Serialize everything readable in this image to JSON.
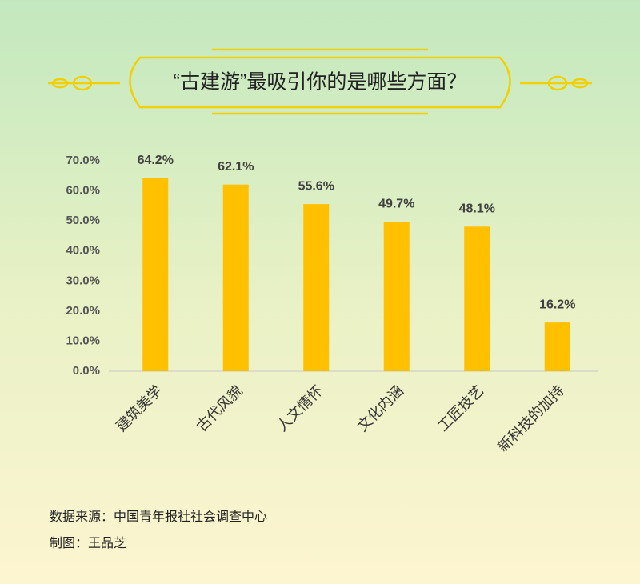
{
  "chart_data": {
    "type": "bar",
    "title": "“古建游”最吸引你的是哪些方面？",
    "categories": [
      "建筑美学",
      "古代风貌",
      "人文情怀",
      "文化内涵",
      "工匠技艺",
      "新科技的加持"
    ],
    "values": [
      64.2,
      62.1,
      55.6,
      49.7,
      48.1,
      16.2
    ],
    "value_labels": [
      "64.2%",
      "62.1%",
      "55.6%",
      "49.7%",
      "48.1%",
      "16.2%"
    ],
    "color": "#ffc000",
    "ylim": [
      0,
      70
    ],
    "yticks": [
      {
        "value": 0,
        "label": "0.0%"
      },
      {
        "value": 10,
        "label": "10.0%"
      },
      {
        "value": 20,
        "label": "20.0%"
      },
      {
        "value": 30,
        "label": "30.0%"
      },
      {
        "value": 40,
        "label": "40.0%"
      },
      {
        "value": 50,
        "label": "50.0%"
      },
      {
        "value": 60,
        "label": "60.0%"
      },
      {
        "value": 70,
        "label": "70.0%"
      }
    ],
    "grid": false,
    "source": "数据来源：中国青年报社社会调查中心",
    "credit": "制图：王品芝"
  }
}
